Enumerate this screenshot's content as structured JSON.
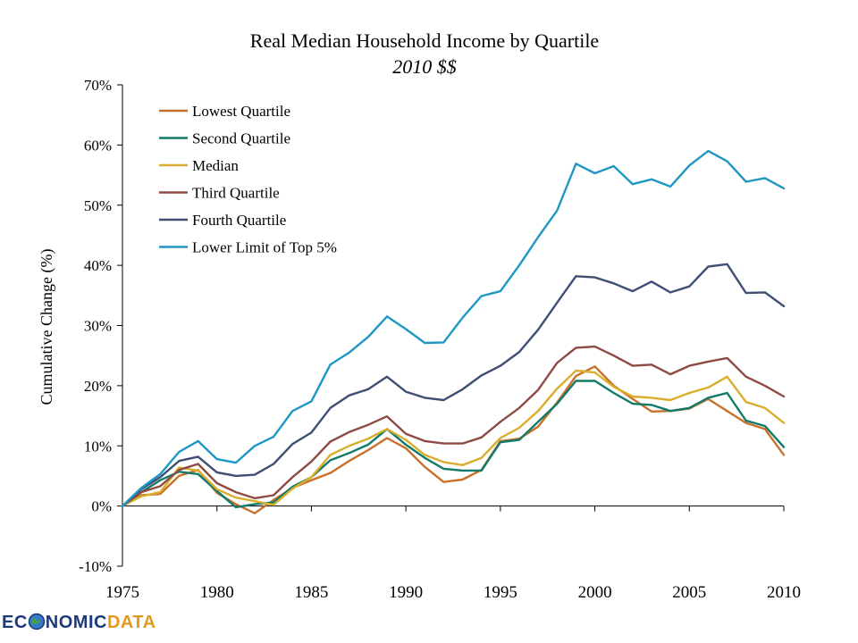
{
  "chart_data": {
    "type": "line",
    "title": "Real Median Household Income by Quartile",
    "subtitle": "2010 $$",
    "xlabel": "",
    "ylabel": "Cumulative Change (%)",
    "xlim": [
      1975,
      2010
    ],
    "ylim": [
      -10,
      70
    ],
    "x_ticks": [
      1975,
      1980,
      1985,
      1990,
      1995,
      2000,
      2005,
      2010
    ],
    "y_ticks": [
      -10,
      0,
      10,
      20,
      30,
      40,
      50,
      60,
      70
    ],
    "y_tick_labels": [
      "-10%",
      "0%",
      "10%",
      "20%",
      "30%",
      "40%",
      "50%",
      "60%",
      "70%"
    ],
    "grid": false,
    "legend_position": "top-left",
    "x": [
      1975,
      1976,
      1977,
      1978,
      1979,
      1980,
      1981,
      1982,
      1983,
      1984,
      1985,
      1986,
      1987,
      1988,
      1989,
      1990,
      1991,
      1992,
      1993,
      1994,
      1995,
      1996,
      1997,
      1998,
      1999,
      2000,
      2001,
      2002,
      2003,
      2004,
      2005,
      2006,
      2007,
      2008,
      2009,
      2010
    ],
    "series": [
      {
        "name": "Lowest Quartile",
        "color": "#c8702a",
        "values": [
          0,
          1.8,
          2.0,
          5.0,
          6.0,
          2.2,
          0.3,
          -1.2,
          1.0,
          3.0,
          4.3,
          5.5,
          7.5,
          9.3,
          11.3,
          9.6,
          6.5,
          4.0,
          4.4,
          6.0,
          10.8,
          11.2,
          13.2,
          17.2,
          21.6,
          23.2,
          20.0,
          17.8,
          15.7,
          15.8,
          16.2,
          17.8,
          15.8,
          13.8,
          12.8,
          8.5
        ]
      },
      {
        "name": "Second Quartile",
        "color": "#117a6a",
        "values": [
          0,
          2.3,
          4.3,
          5.7,
          5.3,
          2.5,
          -0.2,
          0.3,
          0.6,
          3.2,
          4.8,
          7.6,
          8.8,
          10.2,
          12.8,
          10.2,
          8.0,
          6.2,
          5.9,
          5.9,
          10.6,
          11.0,
          14.0,
          17.0,
          20.8,
          20.8,
          18.8,
          17.0,
          16.8,
          15.8,
          16.3,
          18.0,
          18.8,
          14.2,
          13.3,
          9.8
        ]
      },
      {
        "name": "Median",
        "color": "#d9ae2c",
        "values": [
          0,
          1.6,
          2.3,
          6.4,
          5.9,
          2.8,
          1.4,
          0.8,
          0.2,
          2.9,
          4.8,
          8.5,
          10.0,
          11.2,
          12.8,
          11.0,
          8.5,
          7.3,
          6.8,
          8.0,
          11.3,
          13.0,
          15.8,
          19.5,
          22.5,
          22.2,
          19.8,
          18.2,
          18.0,
          17.6,
          18.8,
          19.7,
          21.5,
          17.3,
          16.3,
          13.8
        ]
      },
      {
        "name": "Third Quartile",
        "color": "#8e4a44",
        "values": [
          0,
          2.3,
          3.3,
          6.0,
          7.0,
          3.8,
          2.3,
          1.3,
          1.8,
          4.8,
          7.4,
          10.7,
          12.3,
          13.5,
          14.9,
          12.0,
          10.8,
          10.4,
          10.4,
          11.4,
          14.0,
          16.3,
          19.3,
          23.8,
          26.3,
          26.5,
          25.0,
          23.3,
          23.5,
          21.9,
          23.3,
          24.0,
          24.6,
          21.5,
          20.0,
          18.2
        ]
      },
      {
        "name": "Fourth Quartile",
        "color": "#3e4f73",
        "values": [
          0,
          2.8,
          4.8,
          7.5,
          8.2,
          5.6,
          5.0,
          5.2,
          7.0,
          10.3,
          12.2,
          16.3,
          18.4,
          19.4,
          21.5,
          19.0,
          18.0,
          17.6,
          19.4,
          21.7,
          23.3,
          25.6,
          29.3,
          33.8,
          38.2,
          38.0,
          37.0,
          35.7,
          37.3,
          35.5,
          36.5,
          39.8,
          40.2,
          35.4,
          35.5,
          33.2
        ]
      },
      {
        "name": "Lower Limit of Top 5%",
        "color": "#1e97c4",
        "values": [
          0,
          3.0,
          5.3,
          9.0,
          10.8,
          7.8,
          7.2,
          10.0,
          11.5,
          15.8,
          17.4,
          23.5,
          25.5,
          28.1,
          31.5,
          29.4,
          27.1,
          27.2,
          31.3,
          34.9,
          35.7,
          40.0,
          44.7,
          49.1,
          56.9,
          55.3,
          56.5,
          53.5,
          54.3,
          53.1,
          56.6,
          59.0,
          57.3,
          53.9,
          54.5,
          52.8
        ]
      }
    ]
  },
  "logo": {
    "text_pre": "EC",
    "text_post": "NOMIC",
    "text_data": "DATA",
    "dark_color": "#1d3a7c",
    "accent_color": "#e39a1c"
  }
}
